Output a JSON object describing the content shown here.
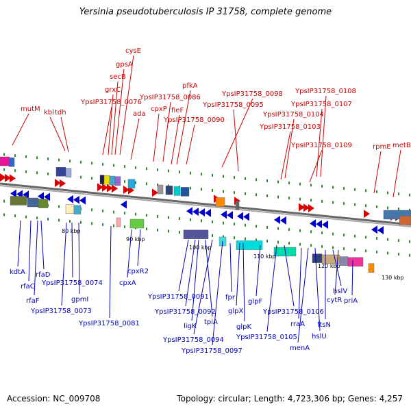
{
  "title": "Yersinia pseudotuberculosis IP 31758, complete genome",
  "accession": "Accession: NC_009708",
  "summary": "Topology: circular; Length: 4,723,306 bp; Genes: 4,257",
  "colors": {
    "forward": "#dd0000",
    "reverse": "#0000cc",
    "backbone": "#888888",
    "tick": "#228822"
  },
  "ticks": [
    "80 kbp",
    "90 kbp",
    "100 kbp",
    "110 kbp",
    "120 kbp",
    "130 kbp"
  ],
  "top_labels": [
    "mutM",
    "kbl",
    "tdh",
    "cysE",
    "gpsA",
    "secB",
    "grxC",
    "YpsIP31758_0076",
    "ada",
    "cpxP",
    "YpsIP31758_0086",
    "pfkA",
    "fieF",
    "YpsIP31758_0090",
    "YpsIP31758_0098",
    "YpsIP31758_0095",
    "YpsIP31758_0108",
    "YpsIP31758_0107",
    "YpsIP31758_0104",
    "YpsIP31758_0103",
    "YpsIP31758_0109",
    "rpmE",
    "metB"
  ],
  "bottom_labels": [
    "kdtA",
    "rfaC",
    "rfaD",
    "rfaF",
    "YpsIP31758_0074",
    "gpmI",
    "YpsIP31758_0073",
    "YpsIP31758_0081",
    "cpxR2",
    "cpxA",
    "YpsIP31758_0091",
    "YpsIP31758_0092",
    "ligK",
    "tpiA",
    "YpsIP31758_0094",
    "YpsIP31758_0097",
    "fpr",
    "glpX",
    "glpK",
    "glpF",
    "YpsIP31758_0106",
    "YpsIP31758_0105",
    "rraA",
    "hslU",
    "menA",
    "hslV",
    "ftsN",
    "cytR",
    "priA"
  ]
}
